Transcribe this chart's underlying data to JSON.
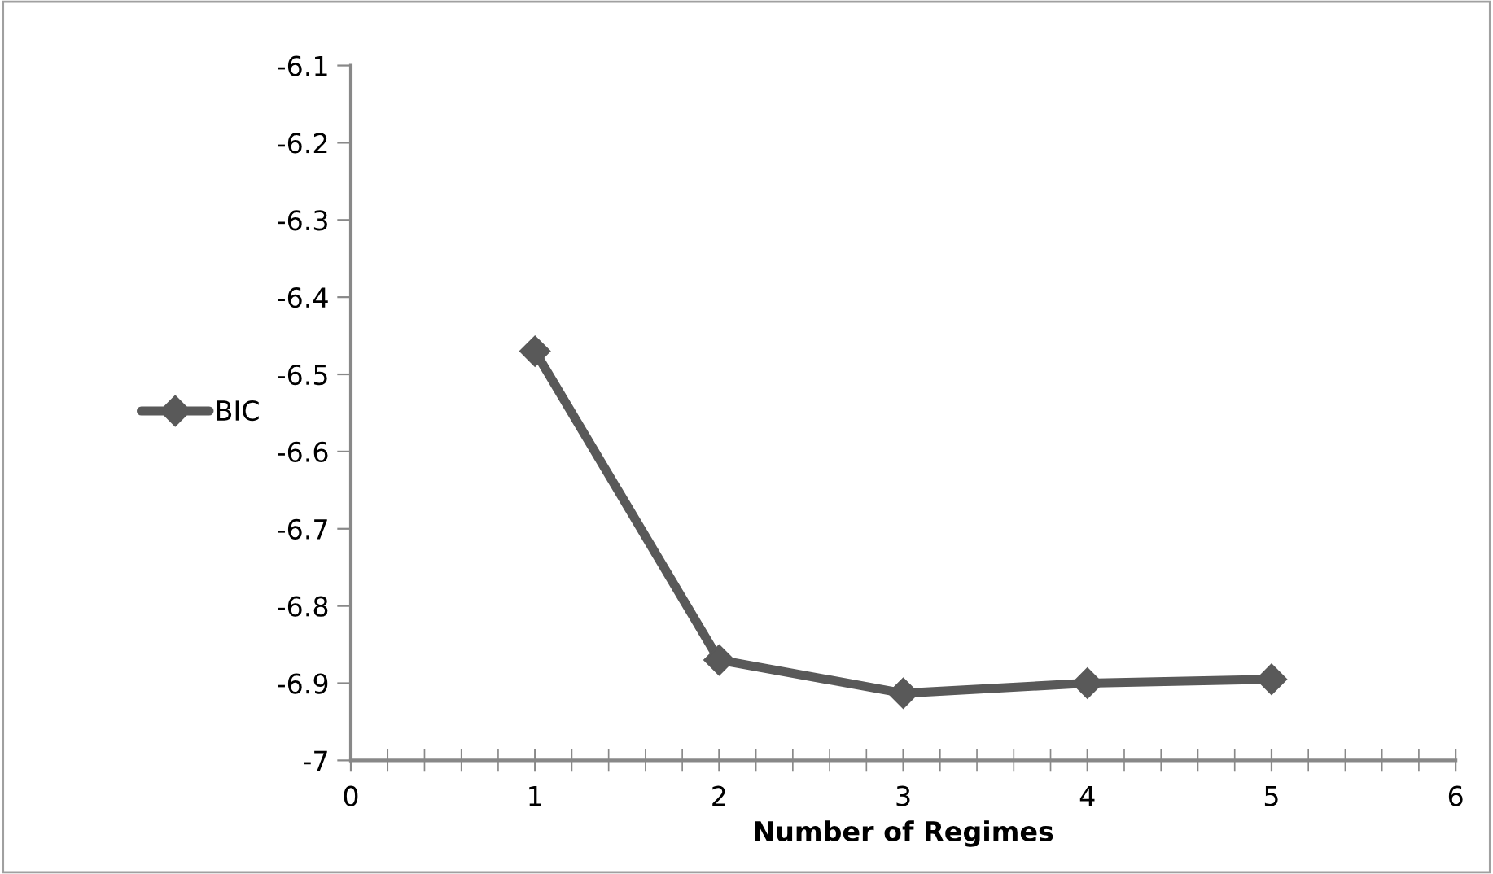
{
  "chart_data": {
    "type": "line",
    "xlabel": "Number of Regimes",
    "x": [
      1,
      2,
      3,
      4,
      5
    ],
    "series": [
      {
        "name": "BIC",
        "color": "#595959",
        "values": [
          -6.47,
          -6.87,
          -6.913,
          -6.9,
          -6.895
        ]
      }
    ],
    "xlim": [
      0,
      6
    ],
    "xticks": [
      0,
      1,
      2,
      3,
      4,
      5,
      6
    ],
    "ylim": [
      -7,
      -6.1
    ],
    "yticks": [
      -7,
      {
        "value": -6.9,
        "label": "-6.9"
      },
      {
        "value": -6.8,
        "label": "-6.8"
      },
      {
        "value": -6.7,
        "label": "-6.7"
      },
      {
        "value": -6.6,
        "label": "-6.6"
      },
      {
        "value": -6.5,
        "label": "-6.5"
      },
      {
        "value": -6.4,
        "label": "-6.4"
      },
      {
        "value": -6.3,
        "label": "-6.3"
      },
      {
        "value": -6.2,
        "label": "-6.2"
      },
      {
        "value": -6.1,
        "label": "-6.1"
      }
    ],
    "marker": "diamond",
    "line_style": "solid",
    "grid": false,
    "legend": "left"
  }
}
